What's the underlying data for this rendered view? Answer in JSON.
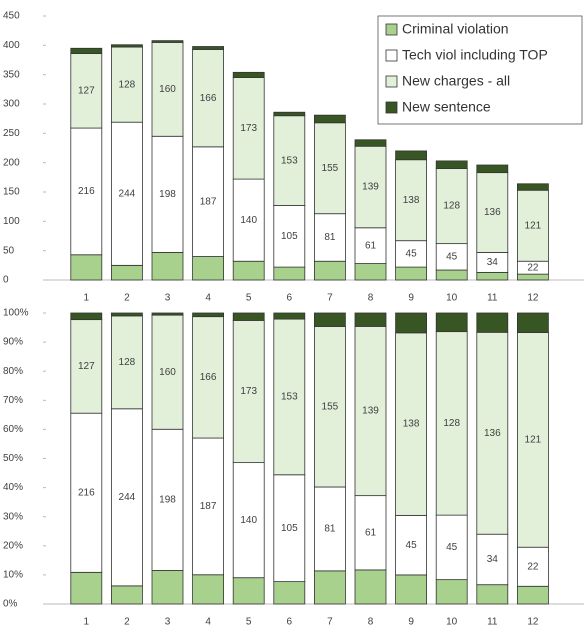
{
  "chart_data": [
    {
      "type": "bar",
      "stacking": "normal",
      "categories": [
        "1",
        "2",
        "3",
        "4",
        "5",
        "6",
        "7",
        "8",
        "9",
        "10",
        "11",
        "12"
      ],
      "ylim": [
        0,
        450
      ],
      "yticks": [
        0,
        50,
        100,
        150,
        200,
        250,
        300,
        350,
        400,
        450
      ],
      "legend": "top-right",
      "series": [
        {
          "name": "Criminal violation",
          "color": "#a9d18e",
          "values": [
            43,
            25,
            47,
            40,
            32,
            22,
            32,
            28,
            22,
            17,
            13,
            10
          ]
        },
        {
          "name": "Tech viol including TOP",
          "color": "#ffffff",
          "show_labels": true,
          "values": [
            216,
            244,
            198,
            187,
            140,
            105,
            81,
            61,
            45,
            45,
            34,
            22
          ]
        },
        {
          "name": "New charges - all",
          "color": "#e2f0d9",
          "show_labels": true,
          "values": [
            127,
            128,
            160,
            166,
            173,
            153,
            155,
            139,
            138,
            128,
            136,
            121
          ]
        },
        {
          "name": "New sentence",
          "color": "#375623",
          "values": [
            9,
            4,
            3,
            5,
            9,
            6,
            13,
            11,
            15,
            13,
            13,
            11
          ]
        }
      ]
    },
    {
      "type": "bar",
      "stacking": "percent",
      "categories": [
        "1",
        "2",
        "3",
        "4",
        "5",
        "6",
        "7",
        "8",
        "9",
        "10",
        "11",
        "12"
      ],
      "ylim": [
        0,
        100
      ],
      "yticks": [
        {
          "value": 0,
          "label": "0%"
        },
        {
          "value": 10,
          "label": "10%"
        },
        {
          "value": 20,
          "label": "20%"
        },
        {
          "value": 30,
          "label": "30%"
        },
        {
          "value": 40,
          "label": "40%"
        },
        {
          "value": 50,
          "label": "50%"
        },
        {
          "value": 60,
          "label": "60%"
        },
        {
          "value": 70,
          "label": "70%"
        },
        {
          "value": 80,
          "label": "80%"
        },
        {
          "value": 90,
          "label": "90%"
        },
        {
          "value": 100,
          "label": "100%"
        }
      ],
      "series": [
        {
          "color": "#a9d18e",
          "values": [
            43,
            25,
            47,
            40,
            32,
            22,
            32,
            28,
            22,
            17,
            13,
            10
          ]
        },
        {
          "color": "#ffffff",
          "show_labels": true,
          "values": [
            216,
            244,
            198,
            187,
            140,
            105,
            81,
            61,
            45,
            45,
            34,
            22
          ]
        },
        {
          "color": "#e2f0d9",
          "show_labels": true,
          "values": [
            127,
            128,
            160,
            166,
            173,
            153,
            155,
            139,
            138,
            128,
            136,
            121
          ]
        },
        {
          "color": "#375623",
          "values": [
            9,
            4,
            3,
            5,
            9,
            6,
            13,
            11,
            15,
            13,
            13,
            11
          ]
        }
      ]
    }
  ]
}
